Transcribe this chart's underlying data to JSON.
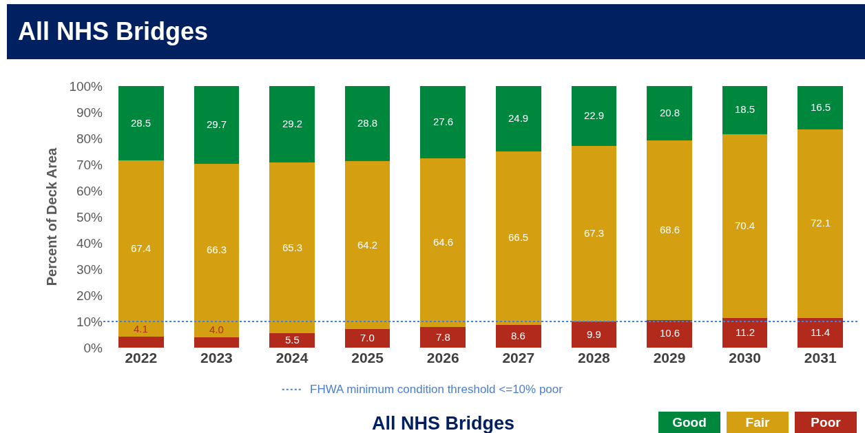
{
  "chart_data": {
    "type": "bar",
    "stacked": true,
    "title": "All NHS Bridges",
    "ylabel": "Percent of Deck Area",
    "categories": [
      "2022",
      "2023",
      "2024",
      "2025",
      "2026",
      "2027",
      "2028",
      "2029",
      "2030",
      "2031"
    ],
    "series": [
      {
        "name": "Poor",
        "color": "#b22a1c",
        "values": [
          4.1,
          4.0,
          5.5,
          7.0,
          7.8,
          8.6,
          9.9,
          10.6,
          11.2,
          11.4
        ],
        "value_labels": [
          "4.1",
          "4.0",
          "5.5",
          "7.0",
          "7.8",
          "8.6",
          "9.9",
          "10.6",
          "11.2",
          "11.4"
        ]
      },
      {
        "name": "Fair",
        "color": "#d4a012",
        "values": [
          67.4,
          66.3,
          65.3,
          64.2,
          64.6,
          66.5,
          67.3,
          68.6,
          70.4,
          72.1
        ]
      },
      {
        "name": "Good",
        "color": "#00873e",
        "values": [
          28.5,
          29.7,
          29.2,
          28.8,
          27.6,
          24.9,
          22.9,
          20.8,
          18.5,
          16.5
        ]
      }
    ],
    "ylim": [
      0,
      100
    ],
    "yticks": [
      {
        "value": 0,
        "label": "0%"
      },
      {
        "value": 10,
        "label": "10%"
      },
      {
        "value": 20,
        "label": "20%"
      },
      {
        "value": 30,
        "label": "30%"
      },
      {
        "value": 40,
        "label": "40%"
      },
      {
        "value": 50,
        "label": "50%"
      },
      {
        "value": 60,
        "label": "60%"
      },
      {
        "value": 70,
        "label": "70%"
      },
      {
        "value": 80,
        "label": "80%"
      },
      {
        "value": 90,
        "label": "90%"
      },
      {
        "value": 100,
        "label": "100%"
      }
    ],
    "ref_lines": [
      {
        "axis": "y",
        "value": 10,
        "label": "FHWA minimum condition threshold <=10% poor",
        "color": "#4a7fd0",
        "line_style": "dotted"
      }
    ],
    "annotations": [
      "All NHS Bridges"
    ],
    "data_labels": true,
    "grid": false,
    "legend": "bottom right"
  }
}
